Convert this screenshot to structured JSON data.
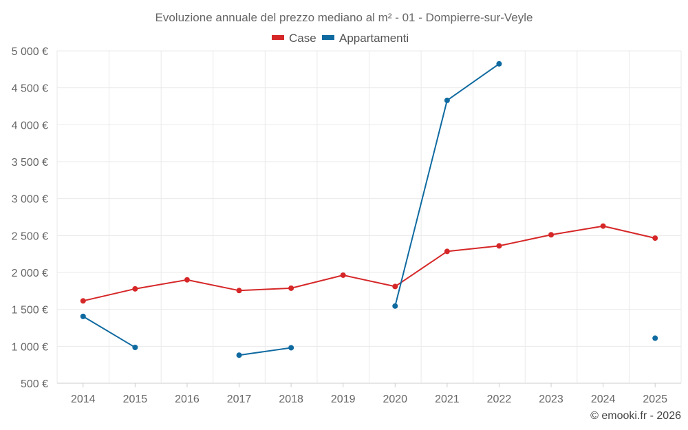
{
  "chart_data": {
    "type": "line",
    "title": "Evoluzione annuale del prezzo mediano al m² - 01 - Dompierre-sur-Veyle",
    "categories": [
      "2014",
      "2015",
      "2016",
      "2017",
      "2018",
      "2019",
      "2020",
      "2021",
      "2022",
      "2023",
      "2024",
      "2025"
    ],
    "series": [
      {
        "name": "Case",
        "color": "#d62728",
        "values": [
          1615,
          1778,
          1900,
          1755,
          1787,
          1963,
          1810,
          2285,
          2360,
          2510,
          2628,
          2465
        ]
      },
      {
        "name": "Appartamenti",
        "color": "#0f6aa0",
        "values": [
          1405,
          985,
          null,
          880,
          980,
          null,
          1545,
          4330,
          4825,
          null,
          null,
          1110
        ]
      }
    ],
    "ylim": [
      500,
      5000
    ],
    "yticks": [
      500,
      1000,
      1500,
      2000,
      2500,
      3000,
      3500,
      4000,
      4500,
      5000
    ],
    "ytick_labels": [
      "500 €",
      "1 000 €",
      "1 500 €",
      "2 000 €",
      "2 500 €",
      "3 000 €",
      "3 500 €",
      "4 000 €",
      "4 500 €",
      "5 000 €"
    ],
    "xlabel": "",
    "ylabel": "",
    "grid": true,
    "legend": "top-center",
    "credit": "© emooki.fr - 2026"
  }
}
